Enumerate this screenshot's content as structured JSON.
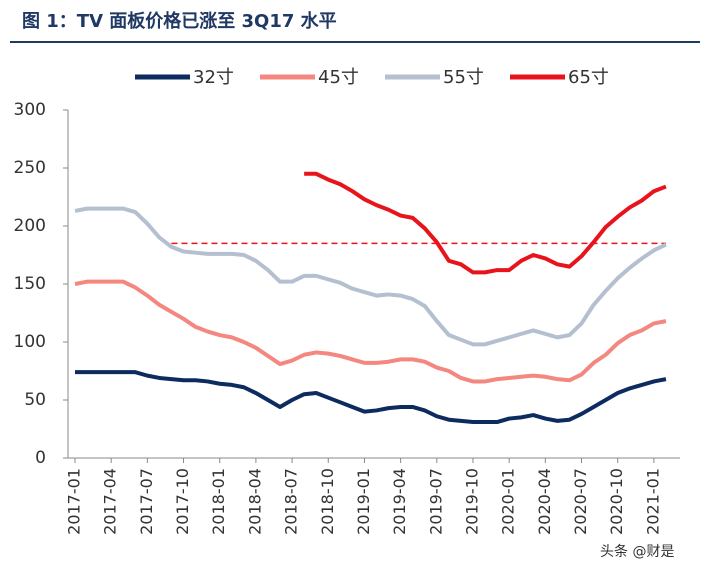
{
  "chart_data": {
    "type": "line",
    "title": "图 1：TV 面板价格已涨至 3Q17 水平",
    "categories": [
      "2017-01",
      null,
      null,
      "2017-04",
      null,
      null,
      "2017-07",
      null,
      null,
      "2017-10",
      null,
      null,
      "2018-01",
      null,
      null,
      "2018-04",
      null,
      null,
      "2018-07",
      null,
      null,
      "2018-10",
      null,
      null,
      "2019-01",
      null,
      null,
      "2019-04",
      null,
      null,
      "2019-07",
      null,
      null,
      "2019-10",
      null,
      null,
      "2020-01",
      null,
      null,
      "2020-04",
      null,
      null,
      "2020-07",
      null,
      null,
      "2020-10",
      null,
      null,
      "2021-01",
      null
    ],
    "series": [
      {
        "name": "32寸",
        "color": "#0d2b5e",
        "values": [
          74,
          74,
          74,
          74,
          74,
          74,
          71,
          69,
          68,
          67,
          67,
          66,
          64,
          63,
          61,
          56,
          50,
          44,
          50,
          55,
          56,
          52,
          48,
          44,
          40,
          41,
          43,
          44,
          44,
          41,
          36,
          33,
          32,
          31,
          31,
          31,
          34,
          35,
          37,
          34,
          32,
          33,
          38,
          44,
          50,
          56,
          60,
          63,
          66,
          68
        ]
      },
      {
        "name": "45寸",
        "color": "#f4877f",
        "values": [
          150,
          152,
          152,
          152,
          152,
          147,
          140,
          132,
          126,
          120,
          113,
          109,
          106,
          104,
          100,
          95,
          88,
          81,
          84,
          89,
          91,
          90,
          88,
          85,
          82,
          82,
          83,
          85,
          85,
          83,
          78,
          75,
          69,
          66,
          66,
          68,
          69,
          70,
          71,
          70,
          68,
          67,
          72,
          82,
          89,
          99,
          106,
          110,
          116,
          118
        ]
      },
      {
        "name": "55寸",
        "color": "#b4bfd0",
        "values": [
          213,
          215,
          215,
          215,
          215,
          212,
          202,
          190,
          182,
          178,
          177,
          176,
          176,
          176,
          175,
          170,
          162,
          152,
          152,
          157,
          157,
          154,
          151,
          146,
          143,
          140,
          141,
          140,
          137,
          131,
          118,
          106,
          102,
          98,
          98,
          101,
          104,
          107,
          110,
          107,
          104,
          106,
          116,
          132,
          144,
          155,
          164,
          172,
          179,
          184
        ]
      },
      {
        "name": "65寸",
        "color": "#e8141b",
        "values": [
          null,
          null,
          null,
          null,
          null,
          null,
          null,
          null,
          null,
          null,
          null,
          null,
          null,
          null,
          null,
          null,
          null,
          null,
          null,
          245,
          245,
          240,
          236,
          230,
          223,
          218,
          214,
          209,
          207,
          198,
          186,
          170,
          167,
          160,
          160,
          162,
          162,
          170,
          175,
          172,
          167,
          165,
          174,
          186,
          199,
          208,
          216,
          222,
          230,
          234
        ]
      }
    ],
    "reference_line": {
      "value": 185,
      "color": "#e8141b"
    },
    "ylim": [
      0,
      300
    ],
    "yticks": [
      0,
      50,
      100,
      150,
      200,
      250,
      300
    ],
    "grid": false,
    "legend": "top",
    "watermark": "头条 @财是"
  }
}
